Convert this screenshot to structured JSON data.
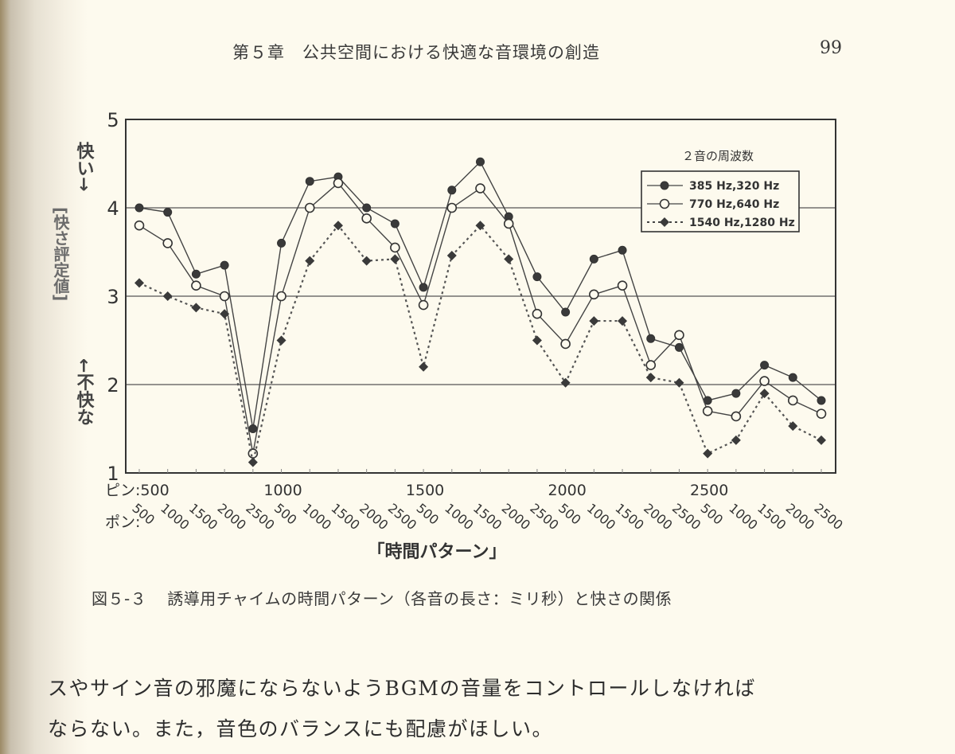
{
  "header": {
    "running_head": "第５章　公共空間における快適な音環境の創造",
    "page_number": "99"
  },
  "figure": {
    "caption_number": "図５-３",
    "caption_text": "誘導用チャイムの時間パターン（各音の長さ：ミリ秒）と快さの関係"
  },
  "body_text": {
    "line1": "スやサイン音の邪魔にならないようBGMの音量をコントロールしなければ",
    "line2": "ならない。また，音色のバランスにも配慮がほしい。"
  },
  "chart_data": {
    "type": "line",
    "title": "",
    "xlabel": "「時間パターン」",
    "ylabel": "[快さ評定値]",
    "y_top_annotation": "快い→",
    "y_bottom_annotation": "←不快な",
    "ylim": [
      1,
      5
    ],
    "yticks": [
      1,
      2,
      3,
      4,
      5
    ],
    "grid": "horizontal at 2, 3, 4",
    "x_group_label": "ピン:",
    "x_sub_label": "ポン:",
    "x_groups": [
      "500",
      "1000",
      "1500",
      "2000",
      "2500"
    ],
    "x_sub_ticks": [
      "500",
      "1000",
      "1500",
      "2000",
      "2500"
    ],
    "categories": [
      "500/500",
      "500/1000",
      "500/1500",
      "500/2000",
      "500/2500",
      "1000/500",
      "1000/1000",
      "1000/1500",
      "1000/2000",
      "1000/2500",
      "1500/500",
      "1500/1000",
      "1500/1500",
      "1500/2000",
      "1500/2500",
      "2000/500",
      "2000/1000",
      "2000/1500",
      "2000/2000",
      "2000/2500",
      "2500/500",
      "2500/1000",
      "2500/1500",
      "2500/2000",
      "2500/2500"
    ],
    "legend_title": "２音の周波数",
    "legend_position": "upper right",
    "series": [
      {
        "name": "385 Hz,320 Hz",
        "marker": "filled-circle",
        "line": "solid",
        "values": [
          4.0,
          3.95,
          3.25,
          3.35,
          1.5,
          3.6,
          4.3,
          4.35,
          4.0,
          3.82,
          3.1,
          4.2,
          4.52,
          3.9,
          3.22,
          2.82,
          3.42,
          3.52,
          2.52,
          2.42,
          1.82,
          1.9,
          2.22,
          2.08,
          1.82
        ]
      },
      {
        "name": "770 Hz,640 Hz",
        "marker": "open-circle",
        "line": "solid",
        "values": [
          3.8,
          3.6,
          3.12,
          3.0,
          1.22,
          3.0,
          4.0,
          4.28,
          3.88,
          3.55,
          2.9,
          4.0,
          4.22,
          3.82,
          2.8,
          2.46,
          3.02,
          3.12,
          2.22,
          2.56,
          1.7,
          1.64,
          2.04,
          1.82,
          1.67
        ]
      },
      {
        "name": "1540 Hz,1280 Hz",
        "marker": "filled-diamond",
        "line": "dotted",
        "values": [
          3.15,
          3.0,
          2.87,
          2.8,
          1.12,
          2.5,
          3.4,
          3.8,
          3.4,
          3.42,
          2.2,
          3.46,
          3.8,
          3.42,
          2.5,
          2.02,
          2.72,
          2.72,
          2.08,
          2.02,
          1.22,
          1.37,
          1.9,
          1.53,
          1.37
        ]
      }
    ]
  }
}
